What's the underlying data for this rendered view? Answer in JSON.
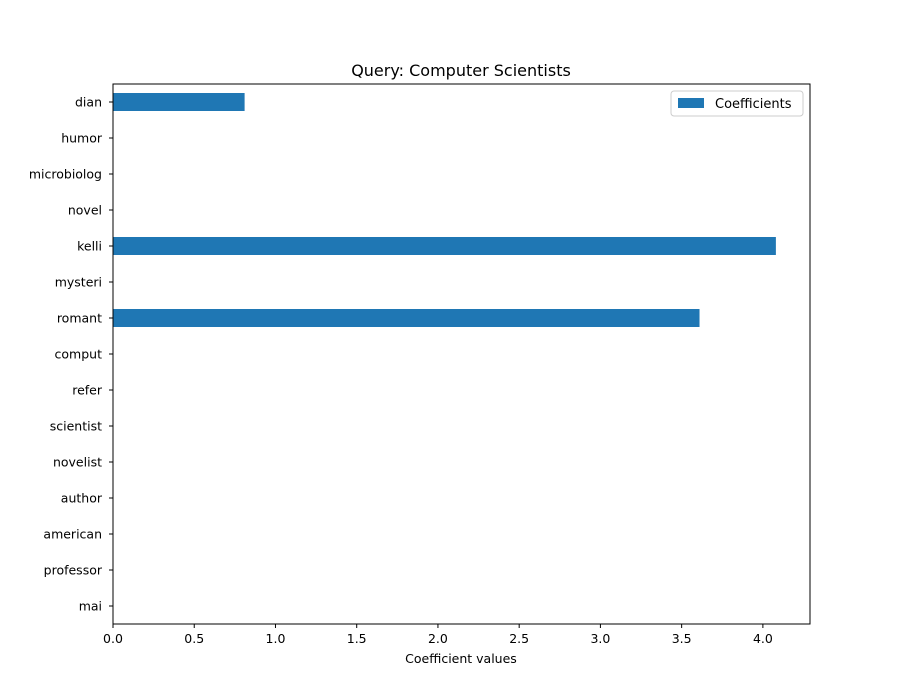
{
  "chart_data": {
    "type": "bar",
    "orientation": "horizontal",
    "title": "Query: Computer Scientists",
    "xlabel": "Coefficient values",
    "ylabel": "",
    "categories": [
      "dian",
      "humor",
      "microbiolog",
      "novel",
      "kelli",
      "mysteri",
      "romant",
      "comput",
      "refer",
      "scientist",
      "novelist",
      "author",
      "american",
      "professor",
      "mai"
    ],
    "series": [
      {
        "name": "Coefficients",
        "values": [
          0.81,
          0,
          0,
          0,
          4.08,
          0,
          3.61,
          0,
          0,
          0,
          0,
          0,
          0,
          0,
          0
        ]
      }
    ],
    "xlim": [
      0,
      4.29
    ],
    "xticks": [
      "0.0",
      "0.5",
      "1.0",
      "1.5",
      "2.0",
      "2.5",
      "3.0",
      "3.5",
      "4.0"
    ],
    "grid": false,
    "legend_position": "top-right",
    "colors": {
      "bar": "#1f77b4",
      "axes": "#000000",
      "background": "#ffffff"
    }
  }
}
